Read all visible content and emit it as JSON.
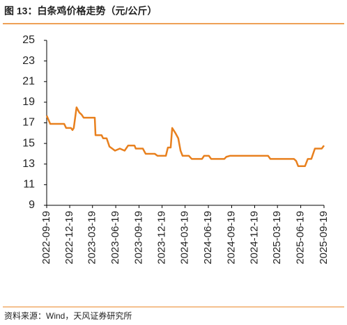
{
  "chart_data": {
    "type": "line",
    "title": "图 13：白条鸡价格走势（元/公斤）",
    "source": "资料来源：Wind，天风证券研究所",
    "x": [
      "2022-09-19",
      "2022-10-03",
      "2022-11-27",
      "2022-12-05",
      "2022-12-24",
      "2022-12-30",
      "2023-01-04",
      "2023-01-15",
      "2023-01-26",
      "2023-02-04",
      "2023-02-12",
      "2023-03-28",
      "2023-03-31",
      "2023-04-24",
      "2023-04-30",
      "2023-05-14",
      "2023-05-25",
      "2023-06-05",
      "2023-06-16",
      "2023-07-05",
      "2023-07-24",
      "2023-08-07",
      "2023-09-01",
      "2023-09-06",
      "2023-10-04",
      "2023-10-15",
      "2023-11-20",
      "2023-12-01",
      "2024-01-03",
      "2024-01-11",
      "2024-01-22",
      "2024-01-28",
      "2024-02-10",
      "2024-02-21",
      "2024-03-01",
      "2024-03-09",
      "2024-04-03",
      "2024-04-14",
      "2024-05-25",
      "2024-06-02",
      "2024-06-21",
      "2024-06-30",
      "2024-08-21",
      "2024-08-29",
      "2024-09-12",
      "2025-02-10",
      "2025-02-19",
      "2025-05-23",
      "2025-06-01",
      "2025-06-09",
      "2025-07-06",
      "2025-07-17",
      "2025-07-31",
      "2025-08-14",
      "2025-09-10",
      "2025-09-19"
    ],
    "series": [
      {
        "name": "白条鸡",
        "color": "#e8801e",
        "values": [
          17.7,
          16.9,
          16.9,
          16.5,
          16.5,
          16.3,
          16.5,
          18.5,
          18.0,
          17.8,
          17.5,
          17.5,
          15.8,
          15.8,
          15.5,
          15.5,
          14.7,
          14.5,
          14.3,
          14.5,
          14.3,
          14.8,
          14.8,
          14.5,
          14.5,
          14.0,
          14.0,
          13.8,
          13.8,
          14.6,
          14.6,
          16.5,
          16.0,
          15.5,
          14.3,
          13.8,
          13.8,
          13.5,
          13.5,
          13.8,
          13.8,
          13.5,
          13.5,
          13.7,
          13.8,
          13.8,
          13.5,
          13.5,
          13.3,
          12.8,
          12.8,
          13.5,
          13.5,
          14.5,
          14.5,
          14.8
        ]
      }
    ],
    "xlim": [
      "2022-09-19",
      "2025-09-19"
    ],
    "xticks": [
      "2022-09-19",
      "2022-12-19",
      "2023-03-19",
      "2023-06-19",
      "2023-09-19",
      "2023-12-19",
      "2024-03-19",
      "2024-06-19",
      "2024-09-19",
      "2024-12-19",
      "2025-03-19",
      "2025-06-19",
      "2025-09-19"
    ],
    "ylim": [
      9,
      25
    ],
    "yticks": [
      9,
      11,
      13,
      15,
      17,
      19,
      21,
      23,
      25
    ],
    "grid": false
  }
}
